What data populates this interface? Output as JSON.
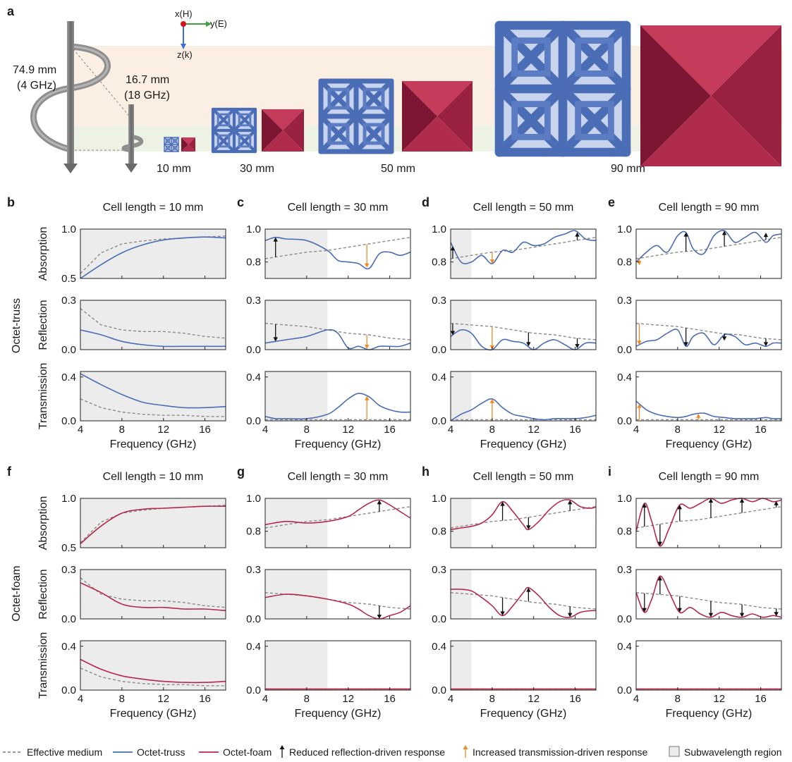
{
  "colors": {
    "truss": "#4a6db5",
    "foam": "#b5294a",
    "effective": "#8a8a8a",
    "arrow_black": "#111111",
    "arrow_orange": "#f08a24",
    "subwave": "#ececec"
  },
  "panel_a": {
    "label": "a",
    "helix_large": {
      "length": "74.9 mm",
      "freq": "(4 GHz)"
    },
    "helix_small": {
      "length": "16.7 mm",
      "freq": "(18 GHz)"
    },
    "axes": {
      "x": "x(H)",
      "y": "y(E)",
      "z": "z(k)"
    },
    "size_labels": [
      "10 mm",
      "30 mm",
      "50 mm",
      "90 mm"
    ]
  },
  "row_labels": {
    "truss": "Octet-truss",
    "foam": "Octet-foam"
  },
  "ylabels": [
    "Absorption",
    "Reflection",
    "Transmission"
  ],
  "xlabel": "Frequency (GHz)",
  "xticks": [
    "4",
    "8",
    "12",
    "16"
  ],
  "yticks": {
    "absorption": [
      "0.5",
      "1.0"
    ],
    "absorption_alt": [
      "0.8",
      "1.0"
    ],
    "reflection": [
      "0.0",
      "0.3"
    ],
    "transmission": [
      "0.0",
      "0.4"
    ]
  },
  "panels": [
    {
      "label": "b",
      "title": "Cell length = 10 mm"
    },
    {
      "label": "c",
      "title": "Cell length = 30 mm"
    },
    {
      "label": "d",
      "title": "Cell length = 50 mm"
    },
    {
      "label": "e",
      "title": "Cell length = 90 mm"
    },
    {
      "label": "f",
      "title": "Cell length = 10 mm"
    },
    {
      "label": "g",
      "title": "Cell length = 30 mm"
    },
    {
      "label": "h",
      "title": "Cell length = 50 mm"
    },
    {
      "label": "i",
      "title": "Cell length = 90 mm"
    }
  ],
  "legend": {
    "effective": "Effective medium",
    "truss": "Octet-truss",
    "foam": "Octet-foam",
    "reduced": "Reduced reflection-driven response",
    "increased": "Increased transmission-driven response",
    "subwave": "Subwavelength region"
  },
  "chart_data": {
    "type": "line",
    "x_range": [
      4,
      18
    ],
    "subwavelength_end_ghz": {
      "10": 18,
      "30": 10,
      "50": 6,
      "90": 4
    },
    "absorption_range": [
      0.5,
      1.0
    ],
    "absorption_range_30_90": [
      0.7,
      1.0
    ],
    "reflection_range": [
      0.0,
      0.3
    ],
    "transmission_range": [
      0.0,
      0.45
    ],
    "effective_medium": {
      "x": [
        4,
        6,
        8,
        10,
        12,
        14,
        16,
        18
      ],
      "absorption_10": [
        0.55,
        0.76,
        0.85,
        0.88,
        0.9,
        0.91,
        0.92,
        0.93
      ],
      "absorption_30_90": [
        0.82,
        0.84,
        0.86,
        0.87,
        0.89,
        0.91,
        0.93,
        0.95
      ],
      "reflection_10": [
        0.25,
        0.15,
        0.12,
        0.11,
        0.11,
        0.1,
        0.08,
        0.07
      ],
      "reflection_30_90": [
        0.16,
        0.15,
        0.14,
        0.12,
        0.1,
        0.09,
        0.07,
        0.06
      ],
      "transmission_10": [
        0.2,
        0.12,
        0.08,
        0.06,
        0.05,
        0.05,
        0.04,
        0.04
      ],
      "transmission_30_90": [
        0.01,
        0.01,
        0.01,
        0.01,
        0.01,
        0.01,
        0.01,
        0.01
      ]
    },
    "truss": {
      "10": {
        "x": [
          4,
          6,
          8,
          10,
          12,
          14,
          16,
          18
        ],
        "absorption": [
          0.5,
          0.64,
          0.76,
          0.84,
          0.89,
          0.91,
          0.92,
          0.91
        ],
        "reflection": [
          0.12,
          0.09,
          0.05,
          0.03,
          0.02,
          0.02,
          0.02,
          0.02
        ],
        "transmission": [
          0.43,
          0.33,
          0.24,
          0.17,
          0.14,
          0.12,
          0.12,
          0.13
        ]
      },
      "30": {
        "x": [
          4,
          5,
          6,
          8,
          10,
          11,
          12,
          13,
          14,
          15,
          16,
          17,
          18
        ],
        "absorption": [
          0.93,
          0.95,
          0.94,
          0.93,
          0.87,
          0.81,
          0.8,
          0.79,
          0.76,
          0.85,
          0.86,
          0.84,
          0.86
        ],
        "reflection": [
          0.04,
          0.05,
          0.06,
          0.08,
          0.12,
          0.1,
          0.01,
          0.02,
          0.0,
          0.02,
          0.02,
          0.02,
          0.04
        ],
        "transmission": [
          0.04,
          0.02,
          0.02,
          0.02,
          0.06,
          0.12,
          0.2,
          0.25,
          0.22,
          0.14,
          0.1,
          0.08,
          0.08
        ]
      },
      "50": {
        "x": [
          4,
          5,
          6,
          7,
          8,
          9,
          10,
          11,
          12,
          13,
          14,
          15,
          16,
          17,
          18
        ],
        "absorption": [
          0.92,
          0.8,
          0.8,
          0.84,
          0.79,
          0.87,
          0.86,
          0.92,
          0.9,
          0.91,
          0.95,
          0.97,
          0.99,
          0.94,
          0.93
        ],
        "reflection": [
          0.08,
          0.12,
          0.1,
          0.02,
          0.0,
          0.06,
          0.05,
          0.04,
          0.0,
          0.04,
          0.06,
          0.03,
          0.0,
          0.04,
          0.04
        ],
        "transmission": [
          0.0,
          0.06,
          0.1,
          0.16,
          0.2,
          0.12,
          0.06,
          0.04,
          0.02,
          0.01,
          0.02,
          0.02,
          0.02,
          0.03,
          0.05
        ]
      },
      "90": {
        "x": [
          4,
          5,
          6,
          7,
          8,
          8.8,
          9.5,
          10.5,
          11.5,
          12.5,
          13.5,
          14.5,
          15.5,
          16.5,
          17.2,
          18
        ],
        "absorption": [
          0.8,
          0.86,
          0.9,
          0.86,
          0.96,
          0.98,
          0.88,
          0.85,
          0.96,
          0.99,
          0.92,
          0.95,
          0.98,
          0.92,
          0.96,
          0.97
        ],
        "reflection": [
          0.02,
          0.05,
          0.06,
          0.1,
          0.12,
          0.02,
          0.08,
          0.1,
          0.03,
          0.09,
          0.08,
          0.03,
          0.04,
          0.02,
          0.04,
          0.04
        ],
        "transmission": [
          0.18,
          0.1,
          0.06,
          0.04,
          0.03,
          0.04,
          0.06,
          0.07,
          0.04,
          0.03,
          0.02,
          0.02,
          0.02,
          0.03,
          0.02,
          0.02
        ]
      }
    },
    "foam": {
      "10": {
        "x": [
          4,
          6,
          8,
          10,
          12,
          14,
          16,
          18
        ],
        "absorption": [
          0.54,
          0.72,
          0.85,
          0.89,
          0.9,
          0.91,
          0.92,
          0.92
        ],
        "reflection": [
          0.22,
          0.16,
          0.09,
          0.07,
          0.07,
          0.06,
          0.06,
          0.05
        ],
        "transmission": [
          0.28,
          0.19,
          0.13,
          0.1,
          0.08,
          0.07,
          0.07,
          0.08
        ]
      },
      "30": {
        "x": [
          4,
          6,
          8,
          10,
          12,
          13,
          14,
          15,
          16,
          17,
          18
        ],
        "absorption": [
          0.84,
          0.86,
          0.85,
          0.86,
          0.89,
          0.93,
          0.97,
          0.99,
          0.96,
          0.92,
          0.88
        ],
        "reflection": [
          0.13,
          0.15,
          0.14,
          0.12,
          0.09,
          0.06,
          0.02,
          0.0,
          0.02,
          0.04,
          0.08
        ],
        "transmission": [
          0.01,
          0.01,
          0.01,
          0.01,
          0.01,
          0.01,
          0.01,
          0.01,
          0.01,
          0.01,
          0.01
        ]
      },
      "50": {
        "x": [
          4,
          5,
          6,
          7,
          8,
          9,
          10,
          11,
          11.5,
          12.5,
          13.5,
          14.5,
          15.5,
          16.5,
          17.5,
          18
        ],
        "absorption": [
          0.81,
          0.82,
          0.83,
          0.85,
          0.9,
          0.98,
          0.92,
          0.84,
          0.81,
          0.86,
          0.93,
          0.98,
          0.99,
          0.95,
          0.94,
          0.95
        ],
        "reflection": [
          0.18,
          0.18,
          0.17,
          0.13,
          0.08,
          0.02,
          0.08,
          0.16,
          0.19,
          0.14,
          0.07,
          0.02,
          0.01,
          0.04,
          0.05,
          0.05
        ],
        "transmission": [
          0.01,
          0.01,
          0.01,
          0.01,
          0.01,
          0.01,
          0.01,
          0.01,
          0.01,
          0.01,
          0.01,
          0.01,
          0.01,
          0.01,
          0.01,
          0.01
        ]
      },
      "90": {
        "x": [
          4,
          4.8,
          5.5,
          6.3,
          7.2,
          8.2,
          9.2,
          10.2,
          11.2,
          12.2,
          13.2,
          14.2,
          15.2,
          16.2,
          17.2,
          18
        ],
        "absorption": [
          0.8,
          0.97,
          0.86,
          0.71,
          0.82,
          0.96,
          0.94,
          0.97,
          1.0,
          0.97,
          0.99,
          1.0,
          0.98,
          1.0,
          0.98,
          0.99
        ],
        "reflection": [
          0.16,
          0.04,
          0.12,
          0.26,
          0.16,
          0.04,
          0.07,
          0.03,
          0.01,
          0.04,
          0.02,
          0.01,
          0.03,
          0.01,
          0.02,
          0.01
        ],
        "transmission": [
          0.01,
          0.01,
          0.01,
          0.01,
          0.01,
          0.01,
          0.01,
          0.01,
          0.01,
          0.01,
          0.01,
          0.01,
          0.01,
          0.01,
          0.01,
          0.01
        ]
      }
    },
    "arrows": {
      "truss_30": {
        "absorption": [
          [
            5,
            "black",
            "up"
          ],
          [
            13.8,
            "orange",
            "down"
          ]
        ],
        "reflection": [
          [
            5,
            "black",
            "down"
          ],
          [
            13.8,
            "orange",
            "down"
          ]
        ],
        "transmission": [
          [
            13.8,
            "orange",
            "up"
          ]
        ]
      },
      "truss_50": {
        "absorption": [
          [
            4.2,
            "black",
            "up"
          ],
          [
            8,
            "orange",
            "down"
          ],
          [
            16.2,
            "black",
            "up"
          ]
        ],
        "reflection": [
          [
            4.2,
            "black",
            "down"
          ],
          [
            8,
            "orange",
            "down"
          ],
          [
            11.5,
            "black",
            "down"
          ],
          [
            16.2,
            "black",
            "down"
          ]
        ],
        "transmission": [
          [
            8,
            "orange",
            "up"
          ]
        ]
      },
      "truss_90": {
        "absorption": [
          [
            4.3,
            "orange",
            "down"
          ],
          [
            8.8,
            "black",
            "up"
          ],
          [
            12.5,
            "black",
            "up"
          ],
          [
            16.5,
            "black",
            "up"
          ]
        ],
        "reflection": [
          [
            4.3,
            "orange",
            "down"
          ],
          [
            8.8,
            "black",
            "down"
          ],
          [
            12.5,
            "black",
            "down"
          ],
          [
            16.5,
            "black",
            "down"
          ]
        ],
        "transmission": [
          [
            4.3,
            "orange",
            "up"
          ],
          [
            10,
            "orange",
            "up"
          ]
        ]
      },
      "foam_30": {
        "absorption": [
          [
            15,
            "black",
            "up"
          ]
        ],
        "reflection": [
          [
            15,
            "black",
            "down"
          ]
        ],
        "transmission": []
      },
      "foam_50": {
        "absorption": [
          [
            9,
            "black",
            "up"
          ],
          [
            11.5,
            "black",
            "down"
          ],
          [
            15.5,
            "black",
            "up"
          ]
        ],
        "reflection": [
          [
            9,
            "black",
            "down"
          ],
          [
            11.5,
            "black",
            "up"
          ],
          [
            15.5,
            "black",
            "down"
          ]
        ],
        "transmission": []
      },
      "foam_90": {
        "absorption": [
          [
            4.8,
            "black",
            "up"
          ],
          [
            6.3,
            "black",
            "down"
          ],
          [
            8.2,
            "black",
            "up"
          ],
          [
            11.2,
            "black",
            "up"
          ],
          [
            14.2,
            "black",
            "up"
          ],
          [
            17.5,
            "black",
            "up"
          ]
        ],
        "reflection": [
          [
            4.8,
            "black",
            "down"
          ],
          [
            6.3,
            "black",
            "up"
          ],
          [
            8.2,
            "black",
            "down"
          ],
          [
            11.2,
            "black",
            "down"
          ],
          [
            14.2,
            "black",
            "down"
          ],
          [
            17.5,
            "black",
            "down"
          ]
        ],
        "transmission": []
      }
    }
  }
}
